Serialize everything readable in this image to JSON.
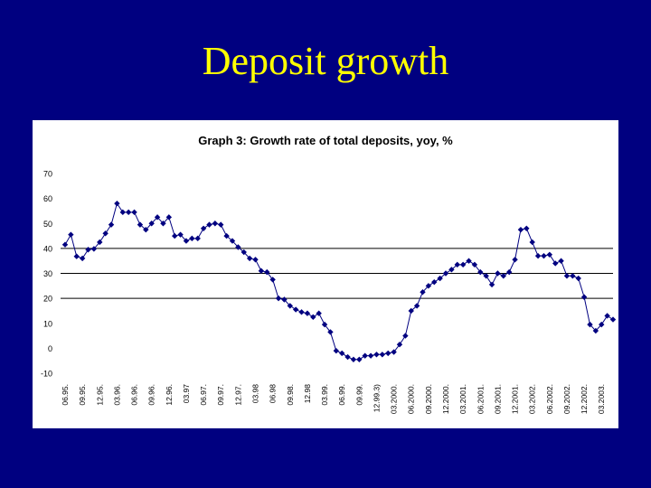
{
  "slide": {
    "title": "Deposit growth"
  },
  "chart_data": {
    "type": "line",
    "title": "Graph 3: Growth rate of total deposits, yoy, %",
    "xlabel": "",
    "ylabel": "",
    "ylim": [
      -10,
      70
    ],
    "yticks": [
      70,
      60,
      50,
      40,
      30,
      20,
      10,
      0,
      -10
    ],
    "grid": "horizontal at 40, 30, 20",
    "legend": "none",
    "series_color": "#000080",
    "x_tick_labels": [
      "06.95.",
      "09.95.",
      "12.95.",
      "03.96.",
      "06.96.",
      "09.96.",
      "12.96.",
      "03.97",
      "06.97.",
      "09.97.",
      "12.97.",
      "03.98",
      "06.98",
      "09.98.",
      "12.98",
      "03.99.",
      "06.99.",
      "09.99.",
      "12.99.3)",
      "03.2000.",
      "06.2000.",
      "09.2000.",
      "12.2000.",
      "03.2001.",
      "06.2001.",
      "09.2001.",
      "12.2001.",
      "03.2002.",
      "06.2002.",
      "09.2002.",
      "12.2002.",
      "03.2003."
    ],
    "points_per_tick": 3,
    "values": [
      41.5,
      45.5,
      36.8,
      36,
      39.5,
      39.8,
      42.5,
      46,
      49.5,
      58,
      54.5,
      54.5,
      54.5,
      49.5,
      47.5,
      50,
      52.5,
      50,
      52.5,
      45,
      45.5,
      43,
      44,
      44,
      48,
      49.5,
      50,
      49.5,
      45,
      43,
      40.5,
      38.5,
      36,
      35.5,
      31,
      30.5,
      27.5,
      20,
      19.5,
      17,
      15.5,
      14.5,
      14,
      12.5,
      14,
      9.5,
      6.5,
      -1,
      -2,
      -3.5,
      -4.5,
      -4.5,
      -3,
      -3,
      -2.5,
      -2.5,
      -2,
      -1.5,
      1.5,
      5,
      15,
      17,
      22.5,
      25,
      26.5,
      28,
      30,
      31.5,
      33.5,
      33.5,
      35,
      33.5,
      30.5,
      29,
      25.5,
      30,
      29,
      30.5,
      35.5,
      47.5,
      48,
      42.5,
      37,
      37,
      37.5,
      34,
      35,
      29,
      29,
      28,
      20.5,
      9.5,
      7,
      9.5,
      13,
      11.5
    ]
  }
}
